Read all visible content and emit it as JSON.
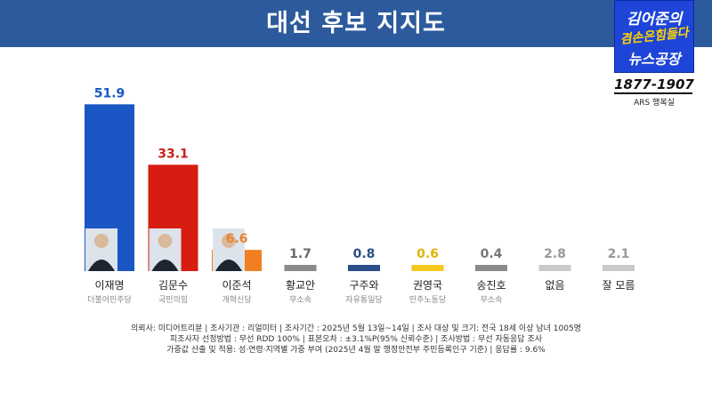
{
  "header": {
    "title": "대선 후보 지지도",
    "unit": "%"
  },
  "logo": {
    "line1": "김어준의",
    "line2": "겸손은힘들다",
    "line3": "뉴스공장",
    "phone": "1877-1907",
    "ars": "ARS 행복실"
  },
  "chart_data": {
    "type": "bar",
    "title": "대선 후보 지지도",
    "unit": "%",
    "categories": [
      "이재명",
      "김문수",
      "이준석",
      "황교안",
      "구주와",
      "권영국",
      "송진호",
      "없음",
      "잘 모름"
    ],
    "parties": [
      "더불어민주당",
      "국민의힘",
      "개혁신당",
      "무소속",
      "자유통일당",
      "민주노동당",
      "무소속",
      "",
      ""
    ],
    "values": [
      51.9,
      33.1,
      6.6,
      1.7,
      0.8,
      0.6,
      0.4,
      2.8,
      2.1
    ],
    "bar_colors": [
      "#1a56c4",
      "#d71d12",
      "#f07f1f",
      "#8a8a8a",
      "#2b4f88",
      "#f4c81c",
      "#8a8a8a",
      "#c9c9c9",
      "#c9c9c9"
    ],
    "label_colors": [
      "#1a56c4",
      "#c4221a",
      "#e8832a",
      "#666666",
      "#2b4f88",
      "#e0b300",
      "#777777",
      "#999999",
      "#999999"
    ],
    "has_photo": [
      true,
      true,
      true,
      false,
      false,
      false,
      false,
      false,
      false
    ],
    "ylim": [
      0,
      60
    ]
  },
  "footnotes": [
    "의뢰사: 미디어트리뷴  |  조사기관 : 리얼미터  |  조사기간 : 2025년 5월 13일~14일  |  조사 대상 및 크기: 전국 18세 이상 남녀 1005명",
    "피조사자 선정방법 : 무선 RDD 100%  |  표본오차 : ±3.1%P(95% 신뢰수준)  |  조사방법 : 무선 자동응답 조사",
    "가중값 산출 및 적용: 성·연령·지역별 가중 부여 (2025년 4월 말 행정안전부 주민등록인구  기준)  |  응답률 : 9.6%"
  ]
}
